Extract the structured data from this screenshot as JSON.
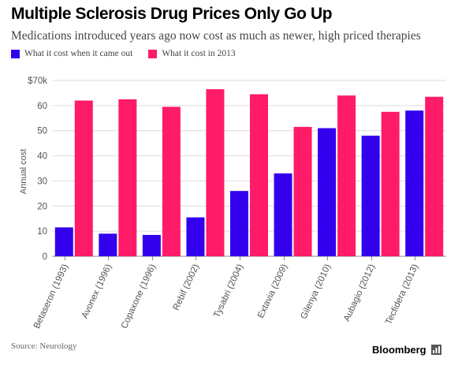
{
  "chart_data": {
    "type": "bar",
    "title": "Multiple Sclerosis Drug Prices Only Go Up",
    "subtitle": "Medications introduced years ago now cost as much as newer, high priced therapies",
    "categories": [
      "Betaseron (1993)",
      "Avonex (1996)",
      "Copaxone (1996)",
      "Rebif (2002)",
      "Tysabri (2004)",
      "Extavia (2009)",
      "Gilenya (2010)",
      "Aubagio (2012)",
      "Tecfidera (2013)"
    ],
    "series": [
      {
        "name": "What it cost when it came out",
        "color": "#3300ee",
        "values": [
          11.5,
          9,
          8.5,
          15.5,
          26,
          33,
          51,
          48,
          58
        ]
      },
      {
        "name": "What it cost in 2013",
        "color": "#ff1b68",
        "values": [
          62,
          62.5,
          59.5,
          66.5,
          64.5,
          51.5,
          64,
          57.5,
          63.5
        ]
      }
    ],
    "ylabel": "Annual cost",
    "xlabel": "",
    "ylim": [
      0,
      70
    ],
    "yticks": [
      0,
      10,
      20,
      30,
      40,
      50,
      60,
      70
    ],
    "ytick_labels": [
      "0",
      "10",
      "20",
      "30",
      "40",
      "50",
      "60",
      "$70k"
    ],
    "grid": true,
    "legend_position": "top-left"
  },
  "source": "Source: Neurology",
  "brand": {
    "name": "Bloomberg",
    "icon": "bloomberg-logo-icon"
  }
}
